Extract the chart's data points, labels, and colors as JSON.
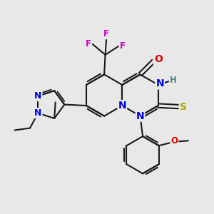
{
  "bg_color": "#e8e8e8",
  "bond_color": "#1a1a1a",
  "bond_width": 1.5,
  "atom_colors": {
    "N": "#0000dd",
    "O": "#dd0000",
    "F": "#cc00cc",
    "S": "#aaaa00",
    "H": "#4a8a8a"
  },
  "font_size": 10,
  "small_font": 8.5
}
